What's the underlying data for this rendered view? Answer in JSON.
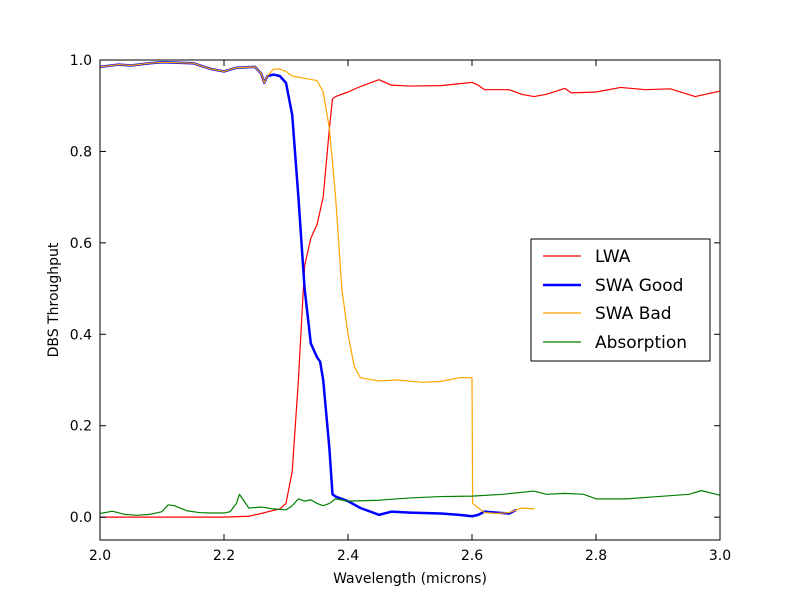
{
  "chart_data": {
    "type": "line",
    "xlabel": "Wavelength (microns)",
    "ylabel": "DBS Throughput",
    "xlim": [
      2.0,
      3.0
    ],
    "ylim": [
      -0.05,
      1.0
    ],
    "xticks": [
      2.0,
      2.2,
      2.4,
      2.6,
      2.8,
      3.0
    ],
    "xtick_labels": [
      "2.0",
      "2.2",
      "2.4",
      "2.6",
      "2.8",
      "3.0"
    ],
    "yticks": [
      0.0,
      0.2,
      0.4,
      0.6,
      0.8,
      1.0
    ],
    "ytick_labels": [
      "0.0",
      "0.2",
      "0.4",
      "0.6",
      "0.8",
      "1.0"
    ],
    "grid": false,
    "legend_position": "center-right",
    "series": [
      {
        "name": "LWA",
        "color": "#ff0000",
        "linewidth": 1.2,
        "x": [
          2.0,
          2.1,
          2.2,
          2.24,
          2.26,
          2.28,
          2.29,
          2.3,
          2.31,
          2.32,
          2.33,
          2.34,
          2.35,
          2.36,
          2.37,
          2.375,
          2.38,
          2.4,
          2.42,
          2.45,
          2.47,
          2.5,
          2.55,
          2.6,
          2.61,
          2.62,
          2.64,
          2.66,
          2.68,
          2.7,
          2.72,
          2.75,
          2.76,
          2.8,
          2.84,
          2.88,
          2.92,
          2.96,
          3.0
        ],
        "y": [
          0.0,
          0.0,
          0.0,
          0.002,
          0.008,
          0.015,
          0.018,
          0.03,
          0.1,
          0.3,
          0.55,
          0.61,
          0.64,
          0.7,
          0.85,
          0.915,
          0.92,
          0.93,
          0.942,
          0.957,
          0.945,
          0.943,
          0.944,
          0.951,
          0.945,
          0.935,
          0.935,
          0.935,
          0.925,
          0.92,
          0.925,
          0.938,
          0.928,
          0.93,
          0.94,
          0.935,
          0.937,
          0.92,
          0.932
        ]
      },
      {
        "name": "SWA Good",
        "color": "#0000ff",
        "linewidth": 2.5,
        "x": [
          2.0,
          2.03,
          2.05,
          2.08,
          2.1,
          2.15,
          2.18,
          2.2,
          2.22,
          2.25,
          2.26,
          2.265,
          2.27,
          2.28,
          2.29,
          2.3,
          2.31,
          2.32,
          2.33,
          2.34,
          2.35,
          2.355,
          2.36,
          2.37,
          2.375,
          2.38,
          2.4,
          2.42,
          2.45,
          2.47,
          2.5,
          2.55,
          2.58,
          2.6,
          2.61,
          2.62,
          2.64,
          2.66,
          2.67
        ],
        "y": [
          0.985,
          0.99,
          0.988,
          0.993,
          0.995,
          0.993,
          0.98,
          0.975,
          0.983,
          0.985,
          0.97,
          0.95,
          0.965,
          0.968,
          0.965,
          0.95,
          0.88,
          0.7,
          0.5,
          0.38,
          0.35,
          0.34,
          0.3,
          0.15,
          0.05,
          0.045,
          0.035,
          0.02,
          0.005,
          0.012,
          0.01,
          0.008,
          0.005,
          0.002,
          0.005,
          0.012,
          0.01,
          0.008,
          0.015
        ]
      },
      {
        "name": "SWA Bad",
        "color": "#ffa500",
        "linewidth": 1.2,
        "x": [
          2.0,
          2.03,
          2.05,
          2.08,
          2.1,
          2.15,
          2.18,
          2.2,
          2.22,
          2.25,
          2.26,
          2.265,
          2.27,
          2.28,
          2.29,
          2.3,
          2.31,
          2.33,
          2.35,
          2.36,
          2.37,
          2.38,
          2.39,
          2.4,
          2.41,
          2.42,
          2.45,
          2.48,
          2.52,
          2.55,
          2.58,
          2.6,
          2.601,
          2.62,
          2.64,
          2.66,
          2.68,
          2.7
        ],
        "y": [
          0.985,
          0.99,
          0.988,
          0.993,
          0.995,
          0.993,
          0.98,
          0.975,
          0.983,
          0.985,
          0.97,
          0.95,
          0.965,
          0.98,
          0.98,
          0.975,
          0.965,
          0.96,
          0.955,
          0.93,
          0.85,
          0.7,
          0.5,
          0.4,
          0.33,
          0.305,
          0.298,
          0.3,
          0.295,
          0.297,
          0.305,
          0.305,
          0.03,
          0.01,
          0.008,
          0.01,
          0.02,
          0.018
        ]
      },
      {
        "name": "Absorption",
        "color": "#008000",
        "linewidth": 1.2,
        "x": [
          2.0,
          2.02,
          2.04,
          2.06,
          2.08,
          2.1,
          2.11,
          2.12,
          2.14,
          2.16,
          2.18,
          2.2,
          2.21,
          2.22,
          2.225,
          2.23,
          2.24,
          2.26,
          2.28,
          2.3,
          2.31,
          2.32,
          2.33,
          2.34,
          2.35,
          2.36,
          2.37,
          2.38,
          2.4,
          2.45,
          2.5,
          2.55,
          2.6,
          2.65,
          2.7,
          2.72,
          2.75,
          2.78,
          2.8,
          2.85,
          2.9,
          2.95,
          2.97,
          3.0
        ],
        "y": [
          0.008,
          0.013,
          0.006,
          0.004,
          0.006,
          0.012,
          0.027,
          0.025,
          0.014,
          0.01,
          0.009,
          0.009,
          0.012,
          0.03,
          0.05,
          0.04,
          0.02,
          0.022,
          0.018,
          0.016,
          0.025,
          0.04,
          0.035,
          0.038,
          0.03,
          0.025,
          0.03,
          0.04,
          0.035,
          0.037,
          0.042,
          0.045,
          0.046,
          0.05,
          0.057,
          0.05,
          0.052,
          0.05,
          0.04,
          0.04,
          0.045,
          0.05,
          0.058,
          0.048
        ]
      }
    ]
  }
}
